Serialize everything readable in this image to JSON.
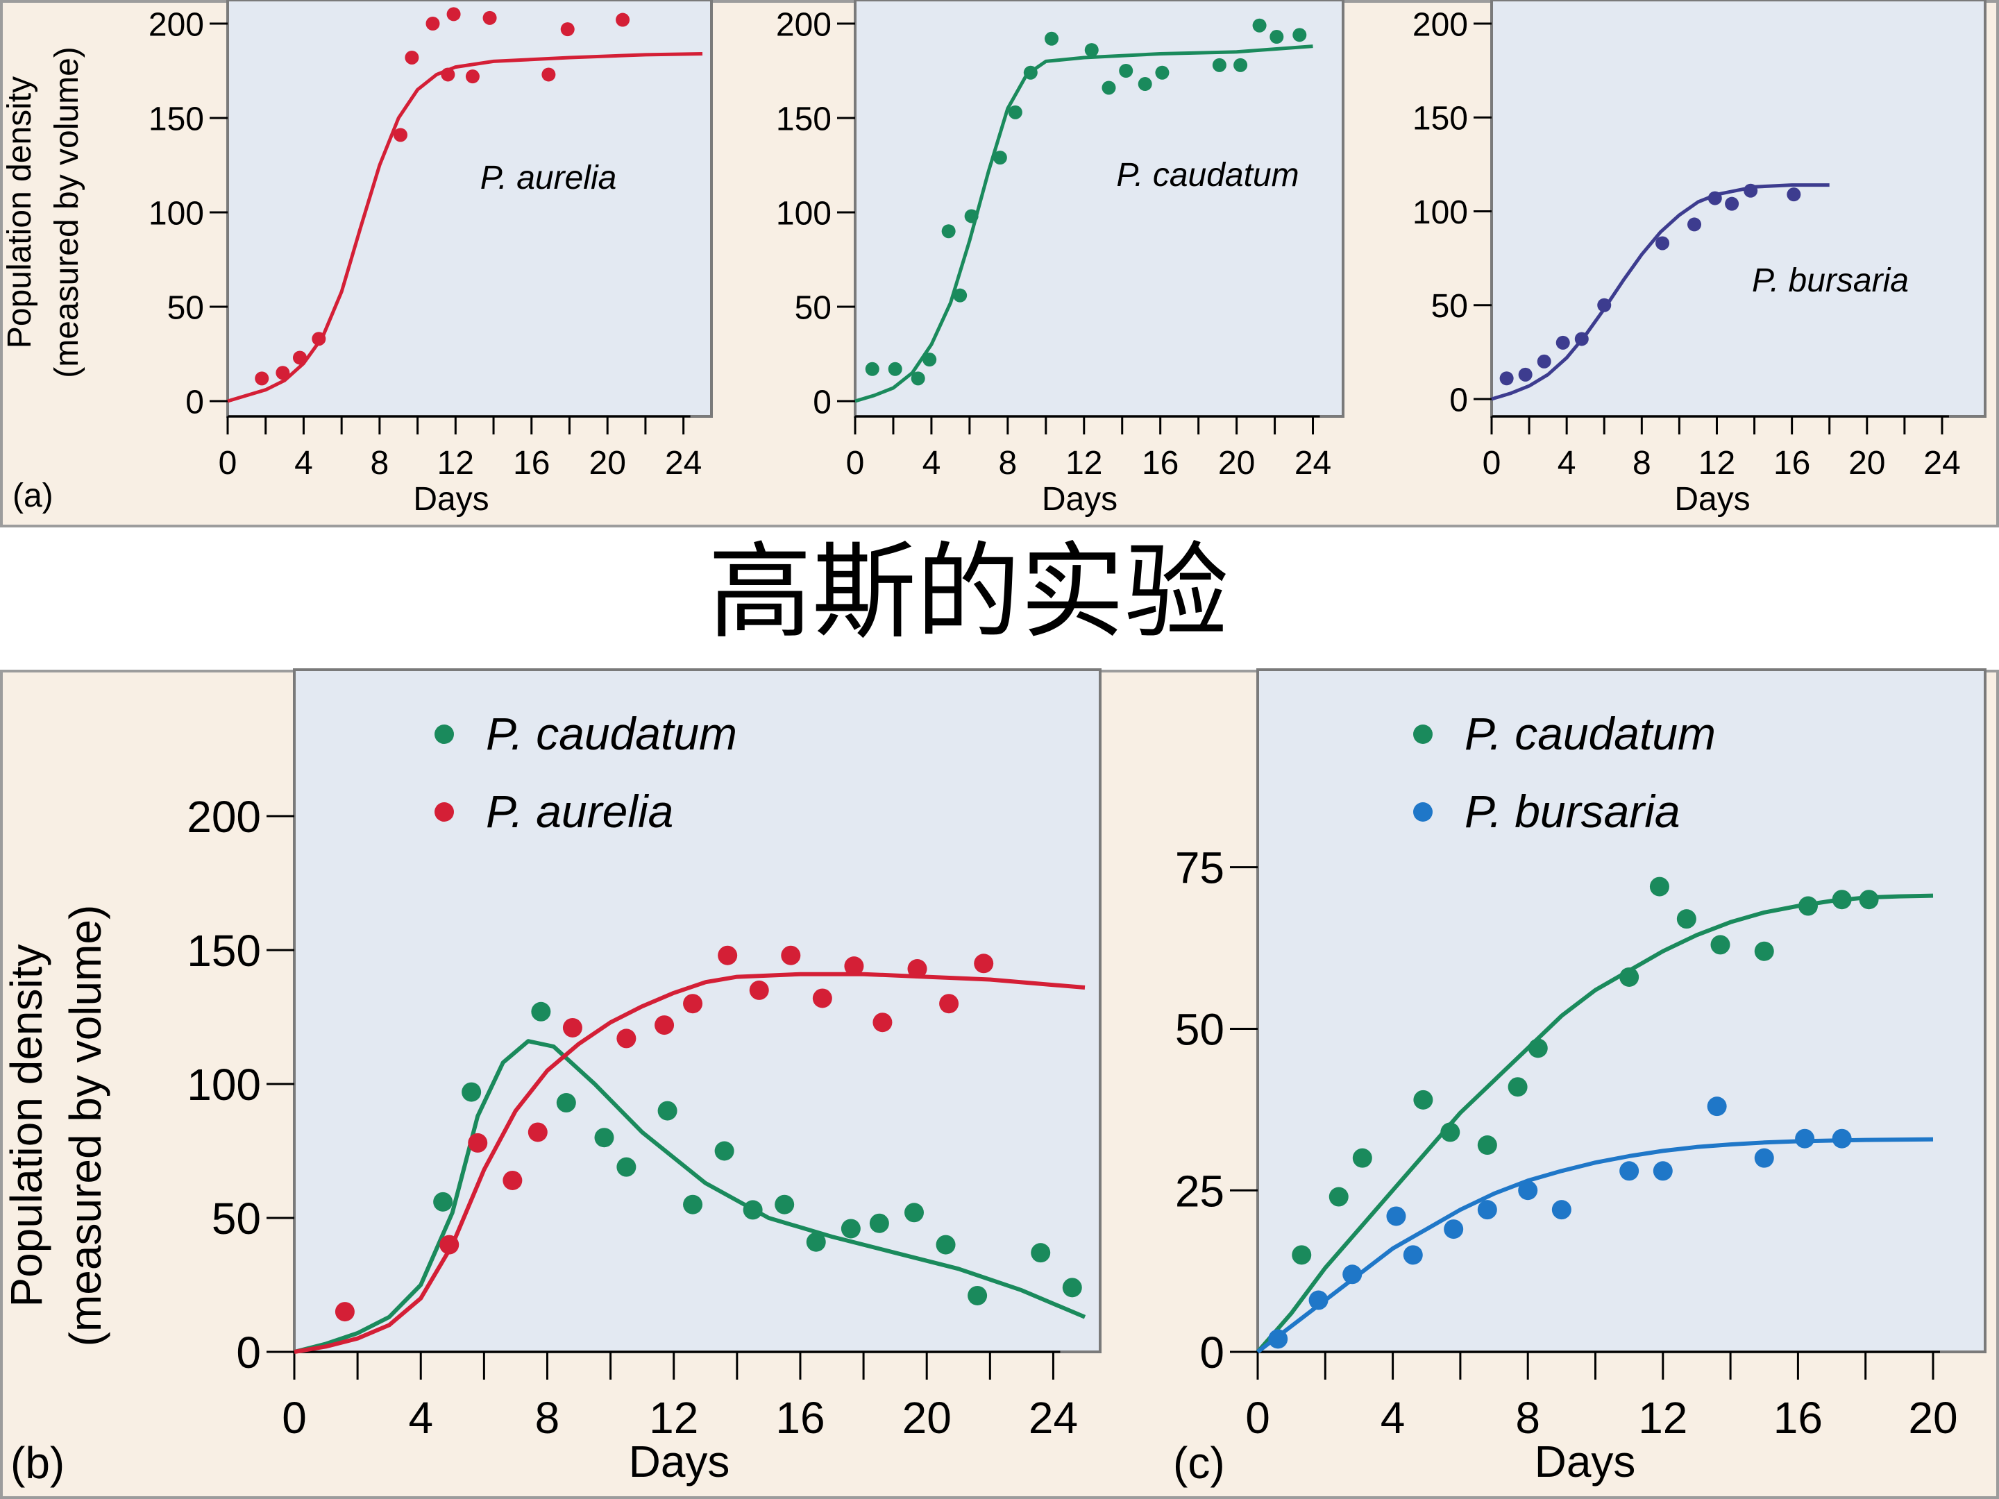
{
  "title": "高斯的实验",
  "colors": {
    "aurelia": "#d41f36",
    "caudatum": "#1a8a5c",
    "bursaria_a": "#3d3c8f",
    "bursaria_c": "#1f77c8",
    "plot_bg": "#e3e9f2",
    "panel_bg": "#f8efe4"
  },
  "chart_data": [
    {
      "panel": "(a)",
      "type": "scatter",
      "ylabel_line1": "Population density",
      "ylabel_line2": "(measured by volume)",
      "xlabel": "Days",
      "xlim": [
        0,
        25
      ],
      "ylim": [
        0,
        200
      ],
      "xticks": [
        0,
        4,
        8,
        12,
        16,
        20,
        24
      ],
      "yticks": [
        0,
        50,
        100,
        150,
        200
      ],
      "series": [
        {
          "name": "P. aurelia",
          "color": "#d41f36",
          "points": [
            [
              1.8,
              12
            ],
            [
              2.9,
              15
            ],
            [
              3.8,
              23
            ],
            [
              4.8,
              33
            ],
            [
              9.1,
              141
            ],
            [
              9.7,
              182
            ],
            [
              10.8,
              200
            ],
            [
              11.6,
              173
            ],
            [
              11.9,
              205
            ],
            [
              12.9,
              172
            ],
            [
              13.8,
              203
            ],
            [
              16.9,
              173
            ],
            [
              17.9,
              197
            ],
            [
              20.8,
              202
            ]
          ],
          "curve": [
            [
              0,
              0
            ],
            [
              2,
              6
            ],
            [
              3,
              11
            ],
            [
              4,
              20
            ],
            [
              5,
              34
            ],
            [
              6,
              58
            ],
            [
              7,
              92
            ],
            [
              8,
              125
            ],
            [
              9,
              150
            ],
            [
              10,
              165
            ],
            [
              11,
              173
            ],
            [
              12,
              177
            ],
            [
              14,
              180
            ],
            [
              18,
              182
            ],
            [
              22,
              183.5
            ],
            [
              25,
              184
            ]
          ]
        }
      ]
    },
    {
      "panel": "",
      "type": "scatter",
      "xlabel": "Days",
      "xlim": [
        0,
        25
      ],
      "ylim": [
        0,
        200
      ],
      "xticks": [
        0,
        4,
        8,
        12,
        16,
        20,
        24
      ],
      "yticks": [
        0,
        50,
        100,
        150,
        200
      ],
      "series": [
        {
          "name": "P. caudatum",
          "color": "#1a8a5c",
          "points": [
            [
              0.9,
              17
            ],
            [
              2.1,
              17
            ],
            [
              3.3,
              12
            ],
            [
              3.9,
              22
            ],
            [
              4.9,
              90
            ],
            [
              5.5,
              56
            ],
            [
              6.1,
              98
            ],
            [
              7.6,
              129
            ],
            [
              8.4,
              153
            ],
            [
              9.2,
              174
            ],
            [
              10.3,
              192
            ],
            [
              12.4,
              186
            ],
            [
              13.3,
              166
            ],
            [
              14.2,
              175
            ],
            [
              15.2,
              168
            ],
            [
              16.1,
              174
            ],
            [
              19.1,
              178
            ],
            [
              20.2,
              178
            ],
            [
              21.2,
              199
            ],
            [
              22.1,
              193
            ],
            [
              23.3,
              194
            ]
          ],
          "curve": [
            [
              0,
              0
            ],
            [
              1,
              3
            ],
            [
              2,
              7
            ],
            [
              3,
              15
            ],
            [
              4,
              30
            ],
            [
              5,
              52
            ],
            [
              6,
              85
            ],
            [
              7,
              122
            ],
            [
              8,
              155
            ],
            [
              9,
              173
            ],
            [
              10,
              180
            ],
            [
              12,
              182
            ],
            [
              16,
              184
            ],
            [
              20,
              185
            ],
            [
              24,
              188
            ]
          ]
        }
      ]
    },
    {
      "panel": "",
      "type": "scatter",
      "xlabel": "Days",
      "xlim": [
        0,
        25
      ],
      "ylim": [
        0,
        200
      ],
      "xticks": [
        0,
        4,
        8,
        12,
        16,
        20,
        24
      ],
      "yticks": [
        0,
        50,
        100,
        150,
        200
      ],
      "label": "P. bursaria",
      "series": [
        {
          "name": "P. bursaria",
          "color": "#3d3c8f",
          "points": [
            [
              0.8,
              11
            ],
            [
              1.8,
              13
            ],
            [
              2.8,
              20
            ],
            [
              3.8,
              30
            ],
            [
              4.8,
              32
            ],
            [
              6.0,
              50
            ],
            [
              9.1,
              83
            ],
            [
              10.8,
              93
            ],
            [
              11.9,
              107
            ],
            [
              12.8,
              104
            ],
            [
              13.8,
              111
            ],
            [
              16.1,
              109
            ]
          ],
          "curve": [
            [
              0,
              0
            ],
            [
              1,
              3
            ],
            [
              2,
              7
            ],
            [
              3,
              13
            ],
            [
              4,
              22
            ],
            [
              5,
              34
            ],
            [
              6,
              48
            ],
            [
              7,
              63
            ],
            [
              8,
              77
            ],
            [
              9,
              89
            ],
            [
              10,
              98
            ],
            [
              11,
              105
            ],
            [
              12,
              109
            ],
            [
              14,
              113
            ],
            [
              16,
              114
            ],
            [
              18,
              114
            ]
          ]
        }
      ]
    },
    {
      "panel": "(b)",
      "type": "scatter",
      "ylabel_line1": "Population density",
      "ylabel_line2": "(measured by volume)",
      "xlabel": "Days",
      "xlim": [
        0,
        25
      ],
      "ylim": [
        0,
        200
      ],
      "xticks": [
        0,
        4,
        8,
        12,
        16,
        20,
        24
      ],
      "yticks": [
        0,
        50,
        100,
        150,
        200
      ],
      "legend": [
        "P. caudatum",
        "P. aurelia"
      ],
      "series": [
        {
          "name": "P. caudatum",
          "color": "#1a8a5c",
          "points": [
            [
              4.7,
              56
            ],
            [
              5.6,
              97
            ],
            [
              7.8,
              127
            ],
            [
              8.6,
              93
            ],
            [
              9.8,
              80
            ],
            [
              10.5,
              69
            ],
            [
              11.8,
              90
            ],
            [
              12.6,
              55
            ],
            [
              13.6,
              75
            ],
            [
              14.5,
              53
            ],
            [
              15.5,
              55
            ],
            [
              16.5,
              41
            ],
            [
              17.6,
              46
            ],
            [
              18.5,
              48
            ],
            [
              19.6,
              52
            ],
            [
              20.6,
              40
            ],
            [
              21.6,
              21
            ],
            [
              23.6,
              37
            ],
            [
              24.6,
              24
            ]
          ],
          "curve": [
            [
              0,
              0
            ],
            [
              1,
              3
            ],
            [
              2,
              7
            ],
            [
              3,
              13
            ],
            [
              4,
              25
            ],
            [
              5,
              52
            ],
            [
              5.8,
              88
            ],
            [
              6.6,
              108
            ],
            [
              7.4,
              116
            ],
            [
              8.2,
              114
            ],
            [
              9.5,
              100
            ],
            [
              11,
              82
            ],
            [
              13,
              63
            ],
            [
              15,
              50
            ],
            [
              17,
              43
            ],
            [
              19,
              37
            ],
            [
              21,
              31
            ],
            [
              23,
              23
            ],
            [
              25,
              13
            ]
          ]
        },
        {
          "name": "P. aurelia",
          "color": "#d41f36",
          "points": [
            [
              1.6,
              15
            ],
            [
              4.9,
              40
            ],
            [
              5.8,
              78
            ],
            [
              6.9,
              64
            ],
            [
              7.7,
              82
            ],
            [
              8.8,
              121
            ],
            [
              10.5,
              117
            ],
            [
              11.7,
              122
            ],
            [
              12.6,
              130
            ],
            [
              13.7,
              148
            ],
            [
              14.7,
              135
            ],
            [
              15.7,
              148
            ],
            [
              16.7,
              132
            ],
            [
              17.7,
              144
            ],
            [
              18.6,
              123
            ],
            [
              19.7,
              143
            ],
            [
              20.7,
              130
            ],
            [
              21.8,
              145
            ]
          ],
          "curve": [
            [
              0,
              0
            ],
            [
              1,
              2
            ],
            [
              2,
              5
            ],
            [
              3,
              10
            ],
            [
              4,
              20
            ],
            [
              5,
              40
            ],
            [
              6,
              68
            ],
            [
              7,
              90
            ],
            [
              8,
              105
            ],
            [
              9,
              115
            ],
            [
              10,
              123
            ],
            [
              11,
              129
            ],
            [
              12,
              134
            ],
            [
              13,
              138
            ],
            [
              14,
              140
            ],
            [
              16,
              141
            ],
            [
              18,
              141
            ],
            [
              20,
              140
            ],
            [
              22,
              139
            ],
            [
              24,
              137
            ],
            [
              25,
              136
            ]
          ]
        }
      ]
    },
    {
      "panel": "(c)",
      "type": "scatter",
      "xlabel": "Days",
      "xlim": [
        0,
        20
      ],
      "ylim": [
        0,
        90
      ],
      "xticks": [
        0,
        4,
        8,
        12,
        16,
        20
      ],
      "yticks": [
        0,
        25,
        50,
        75
      ],
      "legend": [
        "P. caudatum",
        "P. bursaria"
      ],
      "series": [
        {
          "name": "P. caudatum",
          "color": "#1a8a5c",
          "points": [
            [
              1.3,
              15
            ],
            [
              2.4,
              24
            ],
            [
              3.1,
              30
            ],
            [
              4.9,
              39
            ],
            [
              5.7,
              34
            ],
            [
              6.8,
              32
            ],
            [
              7.7,
              41
            ],
            [
              8.3,
              47
            ],
            [
              11.0,
              58
            ],
            [
              11.9,
              72
            ],
            [
              12.7,
              67
            ],
            [
              13.7,
              63
            ],
            [
              15.0,
              62
            ],
            [
              16.3,
              69
            ],
            [
              17.3,
              70
            ],
            [
              18.1,
              70
            ]
          ],
          "curve": [
            [
              0,
              0
            ],
            [
              1,
              6
            ],
            [
              2,
              13
            ],
            [
              3,
              19
            ],
            [
              4,
              25
            ],
            [
              5,
              31
            ],
            [
              6,
              37
            ],
            [
              7,
              42
            ],
            [
              8,
              47
            ],
            [
              9,
              52
            ],
            [
              10,
              56
            ],
            [
              11,
              59
            ],
            [
              12,
              62
            ],
            [
              13,
              64.5
            ],
            [
              14,
              66.5
            ],
            [
              15,
              68
            ],
            [
              16,
              69
            ],
            [
              17,
              69.8
            ],
            [
              18,
              70.3
            ],
            [
              19,
              70.5
            ],
            [
              20,
              70.6
            ]
          ]
        },
        {
          "name": "P. bursaria",
          "color": "#1f77c8",
          "points": [
            [
              0.6,
              2
            ],
            [
              1.8,
              8
            ],
            [
              2.8,
              12
            ],
            [
              4.1,
              21
            ],
            [
              4.6,
              15
            ],
            [
              5.8,
              19
            ],
            [
              6.8,
              22
            ],
            [
              8.0,
              25
            ],
            [
              9.0,
              22
            ],
            [
              11.0,
              28
            ],
            [
              12.0,
              28
            ],
            [
              13.6,
              38
            ],
            [
              15.0,
              30
            ],
            [
              16.2,
              33
            ],
            [
              17.3,
              33
            ]
          ],
          "curve": [
            [
              0,
              0
            ],
            [
              1,
              4
            ],
            [
              2,
              8
            ],
            [
              3,
              12
            ],
            [
              4,
              16
            ],
            [
              5,
              19
            ],
            [
              6,
              22
            ],
            [
              7,
              24.5
            ],
            [
              8,
              26.5
            ],
            [
              9,
              28
            ],
            [
              10,
              29.3
            ],
            [
              11,
              30.3
            ],
            [
              12,
              31.1
            ],
            [
              13,
              31.7
            ],
            [
              14,
              32.1
            ],
            [
              15,
              32.4
            ],
            [
              16,
              32.6
            ],
            [
              17,
              32.7
            ],
            [
              18,
              32.8
            ],
            [
              20,
              32.9
            ]
          ]
        }
      ]
    }
  ]
}
